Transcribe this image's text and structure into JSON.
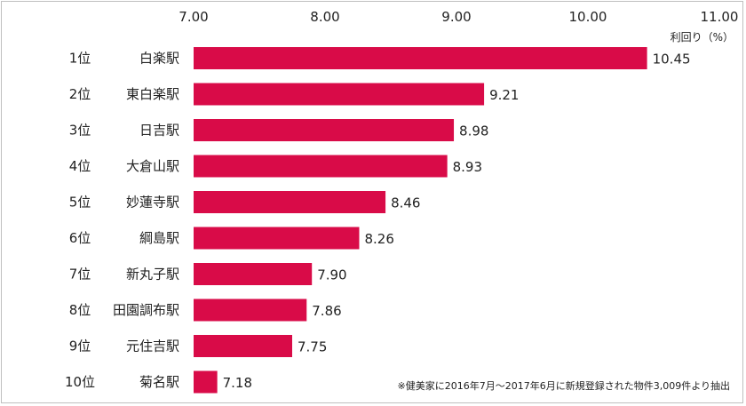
{
  "chart_data": {
    "type": "bar",
    "orientation": "horizontal",
    "ranks": [
      "1位",
      "2位",
      "3位",
      "4位",
      "5位",
      "6位",
      "7位",
      "8位",
      "9位",
      "10位"
    ],
    "categories": [
      "白楽駅",
      "東白楽駅",
      "日吉駅",
      "大倉山駅",
      "妙蓮寺駅",
      "綱島駅",
      "新丸子駅",
      "田園調布駅",
      "元住吉駅",
      "菊名駅"
    ],
    "values": [
      10.45,
      9.21,
      8.98,
      8.93,
      8.46,
      8.26,
      7.9,
      7.86,
      7.75,
      7.18
    ],
    "value_labels": [
      "10.45",
      "9.21",
      "8.98",
      "8.93",
      "8.46",
      "8.26",
      "7.90",
      "7.86",
      "7.75",
      "7.18"
    ],
    "xlim": [
      7.0,
      11.0
    ],
    "x_ticks": [
      "7.00",
      "8.00",
      "9.00",
      "10.00",
      "11.00"
    ],
    "x_axis_position": "top",
    "unit_label": "利回り（%）",
    "grid": false,
    "bar_color": "#d90b48",
    "footnote": "※健美家に2016年7月～2017年6月に新規登録された物件3,009件より抽出"
  }
}
